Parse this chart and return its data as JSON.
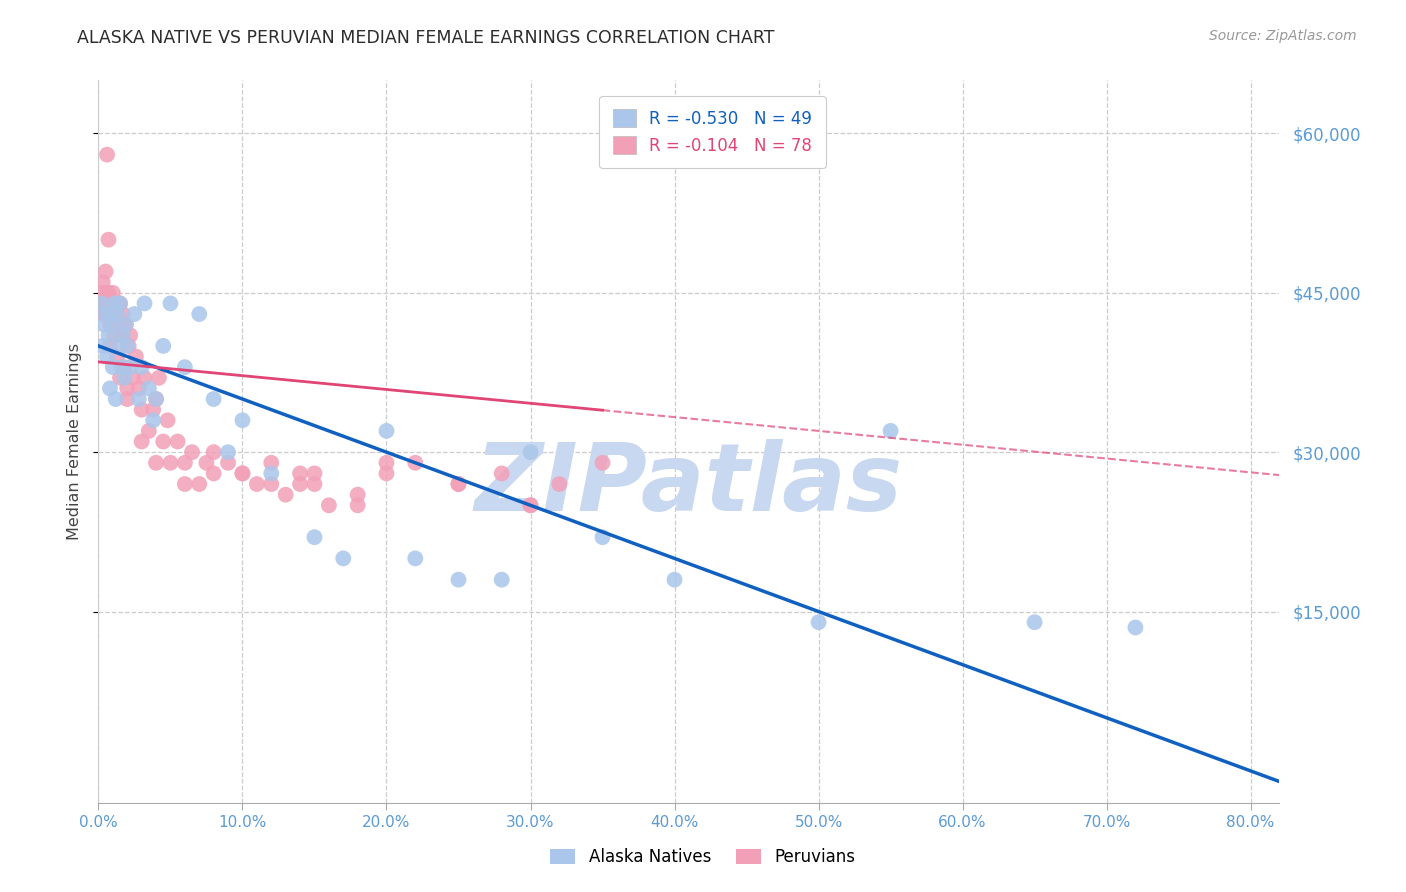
{
  "title": "ALASKA NATIVE VS PERUVIAN MEDIAN FEMALE EARNINGS CORRELATION CHART",
  "source": "Source: ZipAtlas.com",
  "ylabel": "Median Female Earnings",
  "blue_label": "Alaska Natives",
  "pink_label": "Peruvians",
  "blue_R": "-0.530",
  "blue_N": "49",
  "pink_R": "-0.104",
  "pink_N": "78",
  "xlim": [
    0,
    0.82
  ],
  "ylim": [
    -3000,
    65000
  ],
  "yticks": [
    15000,
    30000,
    45000,
    60000
  ],
  "ytick_labels": [
    "$15,000",
    "$30,000",
    "$45,000",
    "$60,000"
  ],
  "xticks": [
    0.0,
    0.1,
    0.2,
    0.3,
    0.4,
    0.5,
    0.6,
    0.7,
    0.8
  ],
  "xtick_labels": [
    "0.0%",
    "10.0%",
    "20.0%",
    "30.0%",
    "40.0%",
    "50.0%",
    "60.0%",
    "70.0%",
    "80.0%"
  ],
  "title_color": "#2d2d2d",
  "source_color": "#999999",
  "axis_color": "#5b9bd5",
  "ylabel_color": "#444444",
  "grid_color": "#cccccc",
  "blue_dot_color": "#aac6ea",
  "pink_dot_color": "#f2a0b8",
  "blue_line_color": "#1060c0",
  "pink_line_color": "#e04575",
  "pink_line_solid_end": 0.35,
  "watermark_color": "#c8d8f0",
  "blue_scatter_x": [
    0.002,
    0.003,
    0.004,
    0.005,
    0.006,
    0.007,
    0.008,
    0.009,
    0.01,
    0.01,
    0.011,
    0.012,
    0.013,
    0.014,
    0.015,
    0.016,
    0.017,
    0.018,
    0.019,
    0.02,
    0.022,
    0.025,
    0.028,
    0.03,
    0.032,
    0.035,
    0.038,
    0.04,
    0.045,
    0.05,
    0.06,
    0.07,
    0.08,
    0.09,
    0.1,
    0.12,
    0.15,
    0.17,
    0.2,
    0.22,
    0.25,
    0.28,
    0.3,
    0.35,
    0.4,
    0.5,
    0.55,
    0.65,
    0.72
  ],
  "blue_scatter_y": [
    44000,
    40000,
    42000,
    43000,
    39000,
    41000,
    36000,
    43000,
    38000,
    42000,
    44000,
    35000,
    43000,
    40000,
    44000,
    38000,
    41000,
    37000,
    42000,
    40000,
    38000,
    43000,
    35000,
    38000,
    44000,
    36000,
    33000,
    35000,
    40000,
    44000,
    38000,
    43000,
    35000,
    30000,
    33000,
    28000,
    22000,
    20000,
    32000,
    20000,
    18000,
    18000,
    30000,
    22000,
    18000,
    14000,
    32000,
    14000,
    13500
  ],
  "pink_scatter_x": [
    0.001,
    0.002,
    0.003,
    0.004,
    0.005,
    0.006,
    0.007,
    0.007,
    0.008,
    0.009,
    0.01,
    0.01,
    0.011,
    0.012,
    0.013,
    0.014,
    0.015,
    0.015,
    0.016,
    0.017,
    0.018,
    0.019,
    0.02,
    0.021,
    0.022,
    0.024,
    0.026,
    0.028,
    0.03,
    0.032,
    0.035,
    0.038,
    0.04,
    0.042,
    0.045,
    0.048,
    0.05,
    0.055,
    0.06,
    0.065,
    0.07,
    0.075,
    0.08,
    0.09,
    0.1,
    0.11,
    0.12,
    0.13,
    0.14,
    0.15,
    0.16,
    0.18,
    0.2,
    0.22,
    0.25,
    0.28,
    0.3,
    0.32,
    0.35,
    0.18,
    0.14,
    0.1,
    0.08,
    0.06,
    0.04,
    0.03,
    0.02,
    0.015,
    0.01,
    0.008,
    0.006,
    0.005,
    0.004,
    0.3,
    0.25,
    0.2,
    0.15,
    0.12
  ],
  "pink_scatter_y": [
    44000,
    45000,
    46000,
    43000,
    47000,
    58000,
    45000,
    50000,
    42000,
    44000,
    43000,
    45000,
    41000,
    43000,
    39000,
    44000,
    42000,
    44000,
    41000,
    43000,
    38000,
    42000,
    36000,
    40000,
    41000,
    37000,
    39000,
    36000,
    34000,
    37000,
    32000,
    34000,
    35000,
    37000,
    31000,
    33000,
    29000,
    31000,
    29000,
    30000,
    27000,
    29000,
    28000,
    29000,
    28000,
    27000,
    29000,
    26000,
    28000,
    27000,
    25000,
    26000,
    28000,
    29000,
    27000,
    28000,
    25000,
    27000,
    29000,
    25000,
    27000,
    28000,
    30000,
    27000,
    29000,
    31000,
    35000,
    37000,
    42000,
    40000,
    45000,
    44000,
    43000,
    25000,
    27000,
    29000,
    28000,
    27000
  ]
}
